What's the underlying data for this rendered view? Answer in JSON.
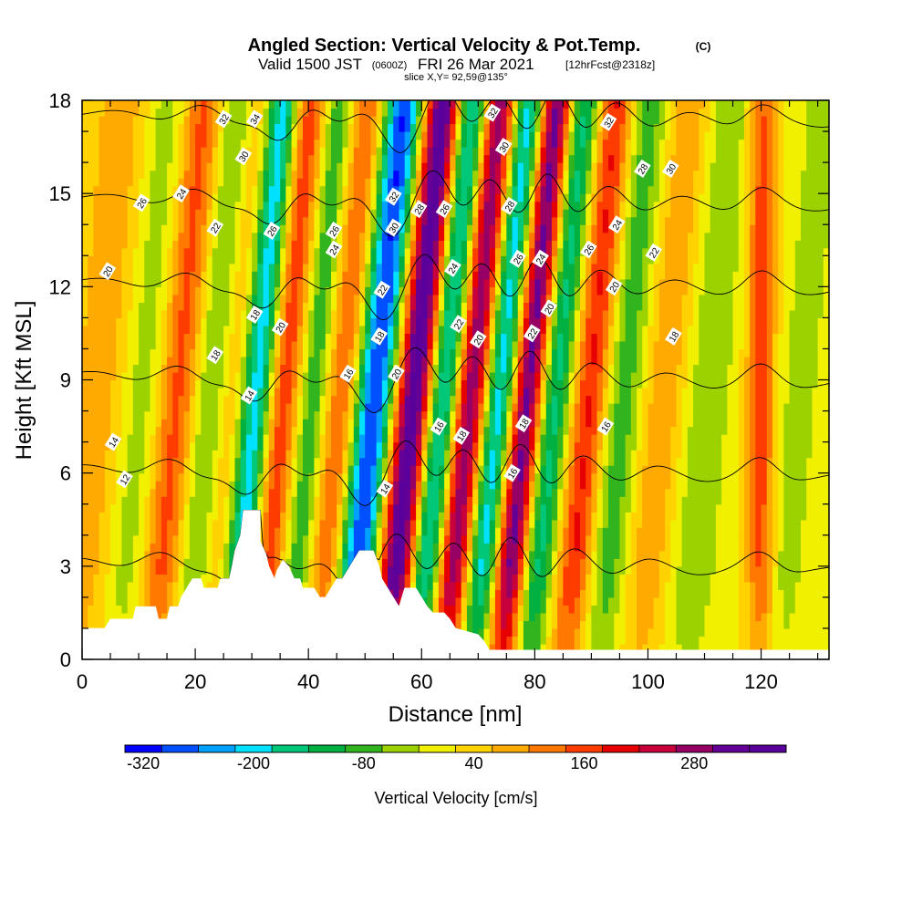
{
  "chart_data": {
    "type": "heatmap",
    "title_main": "Angled Section: Vertical Velocity & Pot.Temp.",
    "title_badge": "(C)",
    "valid_prefix": "Valid 1500 JST",
    "valid_zulu": "(0600Z)",
    "valid_date": "FRI 26 Mar 2021",
    "valid_fcst": "[12hrFcst@2318z]",
    "slice_text": "slice X,Y= 92,59@135°",
    "xlabel": "Distance [nm]",
    "ylabel": "Height [Kft MSL]",
    "xlim": [
      0,
      132
    ],
    "ylim": [
      0,
      18
    ],
    "x_ticks": [
      "0",
      "20",
      "40",
      "60",
      "80",
      "100",
      "120"
    ],
    "y_ticks": [
      "0",
      "3",
      "6",
      "9",
      "12",
      "15",
      "18"
    ],
    "colorbar": {
      "label": "Vertical Velocity [cm/s]",
      "tick_labels": [
        "-320",
        "-200",
        "-80",
        "40",
        "160",
        "280"
      ],
      "tick_values": [
        -320,
        -200,
        -80,
        40,
        160,
        280
      ],
      "min": -340,
      "max": 380,
      "step": 40,
      "colors": [
        "#0000ff",
        "#0050ff",
        "#00a0ff",
        "#00e0ff",
        "#00c878",
        "#00b040",
        "#32b41e",
        "#9bd200",
        "#f0f000",
        "#ffd200",
        "#ffaa00",
        "#ff7800",
        "#ff3c00",
        "#e60000",
        "#c8003c",
        "#960064",
        "#640096",
        "#5a009b"
      ]
    },
    "velocity_bands": [
      {
        "center_nm": 3,
        "tilt": 0.45,
        "amp": 70,
        "width": 5
      },
      {
        "center_nm": 11,
        "tilt": 0.5,
        "amp": -60,
        "width": 4
      },
      {
        "center_nm": 17,
        "tilt": 0.5,
        "amp": 140,
        "width": 3.5
      },
      {
        "center_nm": 23,
        "tilt": 0.5,
        "amp": -90,
        "width": 3
      },
      {
        "center_nm": 27,
        "tilt": 0.5,
        "amp": 60,
        "width": 3
      },
      {
        "center_nm": 31,
        "tilt": 0.5,
        "amp": -230,
        "width": 2.8
      },
      {
        "center_nm": 36,
        "tilt": 0.5,
        "amp": 160,
        "width": 3
      },
      {
        "center_nm": 41,
        "tilt": 0.5,
        "amp": -110,
        "width": 3
      },
      {
        "center_nm": 46,
        "tilt": 0.5,
        "amp": 130,
        "width": 3
      },
      {
        "center_nm": 52,
        "tilt": 0.55,
        "amp": -320,
        "width": 3.2
      },
      {
        "center_nm": 59,
        "tilt": 0.55,
        "amp": 350,
        "width": 3.2
      },
      {
        "center_nm": 64,
        "tilt": 0.55,
        "amp": -230,
        "width": 2.8
      },
      {
        "center_nm": 69,
        "tilt": 0.55,
        "amp": 280,
        "width": 2.8
      },
      {
        "center_nm": 74,
        "tilt": 0.55,
        "amp": -220,
        "width": 2.6
      },
      {
        "center_nm": 79,
        "tilt": 0.55,
        "amp": 300,
        "width": 2.6
      },
      {
        "center_nm": 84,
        "tilt": 0.55,
        "amp": -170,
        "width": 2.6
      },
      {
        "center_nm": 90,
        "tilt": 0.5,
        "amp": 170,
        "width": 3
      },
      {
        "center_nm": 96,
        "tilt": 0.5,
        "amp": -100,
        "width": 3.2
      },
      {
        "center_nm": 103,
        "tilt": 0.5,
        "amp": 80,
        "width": 3.5
      },
      {
        "center_nm": 111,
        "tilt": 0.45,
        "amp": -70,
        "width": 4
      },
      {
        "center_nm": 120,
        "tilt": 0.0,
        "amp": 140,
        "width": 2.5
      },
      {
        "center_nm": 127,
        "tilt": 0.45,
        "amp": -60,
        "width": 3.5
      }
    ],
    "terrain_profile_kft": [
      [
        0,
        1.0
      ],
      [
        4,
        1.0
      ],
      [
        5,
        1.3
      ],
      [
        9,
        1.3
      ],
      [
        9.5,
        1.7
      ],
      [
        13,
        1.7
      ],
      [
        13.5,
        1.3
      ],
      [
        15,
        1.3
      ],
      [
        15.5,
        1.7
      ],
      [
        17,
        1.7
      ],
      [
        17.5,
        2.0
      ],
      [
        18.5,
        2.3
      ],
      [
        19.5,
        2.6
      ],
      [
        21,
        2.6
      ],
      [
        21.5,
        2.3
      ],
      [
        24,
        2.3
      ],
      [
        24.5,
        2.6
      ],
      [
        26,
        2.6
      ],
      [
        26.5,
        3.0
      ],
      [
        27,
        3.5
      ],
      [
        28,
        4.0
      ],
      [
        28.5,
        4.8
      ],
      [
        31.5,
        4.8
      ],
      [
        31.5,
        3.8
      ],
      [
        32.5,
        3.4
      ],
      [
        33,
        3.0
      ],
      [
        34,
        2.6
      ],
      [
        34.5,
        2.9
      ],
      [
        35.5,
        3.2
      ],
      [
        36.5,
        3.0
      ],
      [
        37.5,
        2.6
      ],
      [
        38.5,
        2.6
      ],
      [
        39,
        2.3
      ],
      [
        41,
        2.3
      ],
      [
        42,
        2.0
      ],
      [
        43,
        2.0
      ],
      [
        44,
        2.3
      ],
      [
        45,
        2.6
      ],
      [
        46,
        2.6
      ],
      [
        47,
        2.9
      ],
      [
        48,
        3.2
      ],
      [
        49,
        3.5
      ],
      [
        51.5,
        3.5
      ],
      [
        52.5,
        3.0
      ],
      [
        53,
        2.6
      ],
      [
        54,
        2.3
      ],
      [
        55,
        2.0
      ],
      [
        56,
        1.7
      ],
      [
        57,
        2.3
      ],
      [
        59,
        2.3
      ],
      [
        60,
        2.0
      ],
      [
        61,
        1.7
      ],
      [
        62,
        1.5
      ],
      [
        64,
        1.5
      ],
      [
        65,
        1.3
      ],
      [
        66,
        1.0
      ],
      [
        70,
        0.8
      ],
      [
        71,
        0.6
      ],
      [
        72,
        0.3
      ],
      [
        132,
        0.3
      ]
    ],
    "contour_base": {
      "theta_min": 10,
      "theta_max": 36,
      "step": 2
    },
    "contour_labels": [
      {
        "text": "34",
        "x": 30.5,
        "y": 17.4
      },
      {
        "text": "32",
        "x": 25,
        "y": 17.4
      },
      {
        "text": "30",
        "x": 28.5,
        "y": 16.2
      },
      {
        "text": "26",
        "x": 10.5,
        "y": 14.7
      },
      {
        "text": "24",
        "x": 17.5,
        "y": 15.0
      },
      {
        "text": "22",
        "x": 23.5,
        "y": 13.9
      },
      {
        "text": "20",
        "x": 4.5,
        "y": 12.5
      },
      {
        "text": "26",
        "x": 33.5,
        "y": 13.8
      },
      {
        "text": "26",
        "x": 44.5,
        "y": 13.8
      },
      {
        "text": "24",
        "x": 44.5,
        "y": 13.2
      },
      {
        "text": "18",
        "x": 30.5,
        "y": 11.1
      },
      {
        "text": "20",
        "x": 35,
        "y": 10.7
      },
      {
        "text": "18",
        "x": 23.5,
        "y": 9.8
      },
      {
        "text": "14",
        "x": 29.5,
        "y": 8.5
      },
      {
        "text": "16",
        "x": 47,
        "y": 9.2
      },
      {
        "text": "14",
        "x": 5.5,
        "y": 7.0
      },
      {
        "text": "12",
        "x": 7.5,
        "y": 5.8
      },
      {
        "text": "32",
        "x": 55,
        "y": 14.9
      },
      {
        "text": "30",
        "x": 55,
        "y": 13.9
      },
      {
        "text": "28",
        "x": 59.5,
        "y": 14.5
      },
      {
        "text": "26",
        "x": 64,
        "y": 14.5
      },
      {
        "text": "22",
        "x": 53,
        "y": 11.9
      },
      {
        "text": "18",
        "x": 52.5,
        "y": 10.4
      },
      {
        "text": "20",
        "x": 55.5,
        "y": 9.2
      },
      {
        "text": "24",
        "x": 65.5,
        "y": 12.6
      },
      {
        "text": "22",
        "x": 66.5,
        "y": 10.8
      },
      {
        "text": "20",
        "x": 70,
        "y": 10.3
      },
      {
        "text": "16",
        "x": 63,
        "y": 7.5
      },
      {
        "text": "18",
        "x": 67,
        "y": 7.2
      },
      {
        "text": "14",
        "x": 53.5,
        "y": 5.5
      },
      {
        "text": "32",
        "x": 72.5,
        "y": 17.6
      },
      {
        "text": "30",
        "x": 74.5,
        "y": 16.5
      },
      {
        "text": "28",
        "x": 75.5,
        "y": 14.6
      },
      {
        "text": "26",
        "x": 77,
        "y": 12.9
      },
      {
        "text": "24",
        "x": 81,
        "y": 12.9
      },
      {
        "text": "22",
        "x": 79.5,
        "y": 10.5
      },
      {
        "text": "20",
        "x": 82.5,
        "y": 11.3
      },
      {
        "text": "18",
        "x": 78,
        "y": 7.6
      },
      {
        "text": "16",
        "x": 76,
        "y": 6.0
      },
      {
        "text": "32",
        "x": 93,
        "y": 17.3
      },
      {
        "text": "28",
        "x": 99,
        "y": 15.8
      },
      {
        "text": "30",
        "x": 104,
        "y": 15.8
      },
      {
        "text": "24",
        "x": 94.5,
        "y": 14.0
      },
      {
        "text": "26",
        "x": 89.5,
        "y": 13.2
      },
      {
        "text": "22",
        "x": 101,
        "y": 13.1
      },
      {
        "text": "20",
        "x": 94,
        "y": 12.0
      },
      {
        "text": "18",
        "x": 104.5,
        "y": 10.4
      },
      {
        "text": "16",
        "x": 92.5,
        "y": 7.5
      }
    ]
  }
}
